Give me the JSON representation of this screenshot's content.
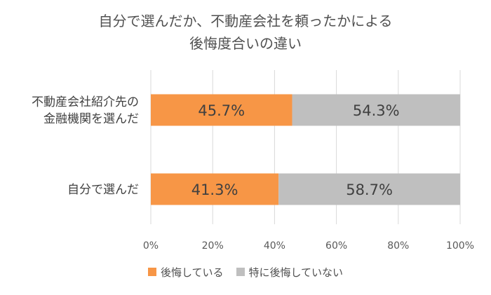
{
  "chart_data": {
    "type": "bar",
    "orientation": "horizontal",
    "stacked": "100%",
    "title_line1": "自分で選んだか、不動産会社を頼ったかによる",
    "title_line2": "後悔度合いの違い",
    "categories": [
      [
        "不動産会社紹介先の",
        "金融機関を選んだ"
      ],
      [
        "自分で選んだ"
      ]
    ],
    "series": [
      {
        "name": "後悔している",
        "color": "#F79646",
        "values": [
          45.7,
          41.3
        ],
        "labels": [
          "45.7%",
          "41.3%"
        ]
      },
      {
        "name": "特に後悔していない",
        "color": "#BFBFBF",
        "values": [
          54.3,
          58.7
        ],
        "labels": [
          "54.3%",
          "58.7%"
        ]
      }
    ],
    "xlim": [
      0,
      100
    ],
    "x_ticks": [
      "0%",
      "20%",
      "40%",
      "60%",
      "80%",
      "100%"
    ],
    "grid": true,
    "legend_position": "bottom"
  }
}
